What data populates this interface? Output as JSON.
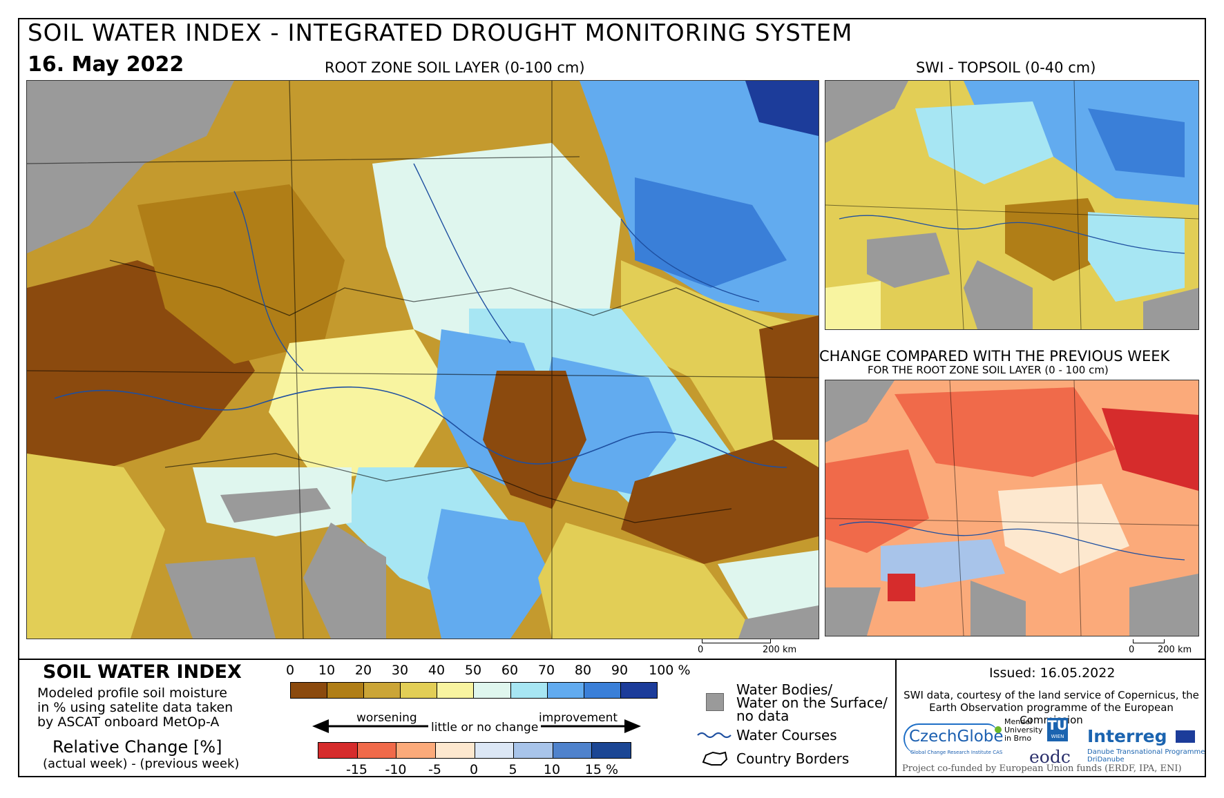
{
  "header": {
    "title": "SOIL WATER INDEX - INTEGRATED DROUGHT MONITORING SYSTEM",
    "date": "16. May 2022"
  },
  "maps": {
    "main_title": "ROOT ZONE SOIL LAYER (0-100 cm)",
    "topsoil_title": "SWI - TOPSOIL (0-40 cm)",
    "change_title": "CHANGE COMPARED WITH THE PREVIOUS WEEK",
    "change_subtitle": "FOR THE ROOT ZONE SOIL LAYER (0 - 100 cm)",
    "scale_main": {
      "start": "0",
      "end": "200 km"
    },
    "scale_small": {
      "start": "0",
      "end": "200 km"
    }
  },
  "legend": {
    "swi_title": "SOIL WATER INDEX",
    "swi_description": "Modeled profile soil moisture\nin % using satelite data taken\nby ASCAT onboard MetOp-A",
    "relative_title": "Relative Change [%]",
    "relative_subtitle": "(actual week) - (previous week)",
    "swi_ticks": [
      "0",
      "10",
      "20",
      "30",
      "40",
      "50",
      "60",
      "70",
      "80",
      "90",
      "100 %"
    ],
    "swi_colors": [
      "#8b4a0e",
      "#b07e17",
      "#cba537",
      "#e2ce56",
      "#f8f4a0",
      "#dff6ee",
      "#a7e6f3",
      "#62abef",
      "#3a7fd8",
      "#1c3c9a"
    ],
    "change_ticks": [
      "-15",
      "-10",
      "-5",
      "0",
      "5",
      "10",
      "15 %"
    ],
    "change_colors": [
      "#d62c2c",
      "#f06a4a",
      "#fbaa7a",
      "#fde8cf",
      "#dce7f5",
      "#a8c4ea",
      "#4f82cc",
      "#1b4694"
    ],
    "arrow_labels": {
      "worsening": "worsening",
      "neutral": "little or no change",
      "improvement": "improvement"
    },
    "items": {
      "water_bodies": "Water Bodies/\nWater on the Surface/\nno data",
      "water_courses": "Water Courses",
      "country_borders": "Country Borders"
    }
  },
  "info": {
    "issued": "Issued: 16.05.2022",
    "credit": "SWI data, courtesy of the land service of Copernicus, the Earth Observation programme of the European Commission",
    "footer": "Project co-funded by European Union funds (ERDF, IPA, ENI)"
  },
  "logos": {
    "czechglobe": "CzechGlobe",
    "czechglobe_sub": "Global Change Research Institute CAS",
    "mendel": "Mendel\nUniversity\nin Brno",
    "tu": "TU",
    "wien": "WIEN",
    "eodc": "eodc",
    "interreg": "Interreg",
    "interreg_sub1": "Danube Transnational Programme",
    "interreg_sub2": "DriDanube"
  }
}
